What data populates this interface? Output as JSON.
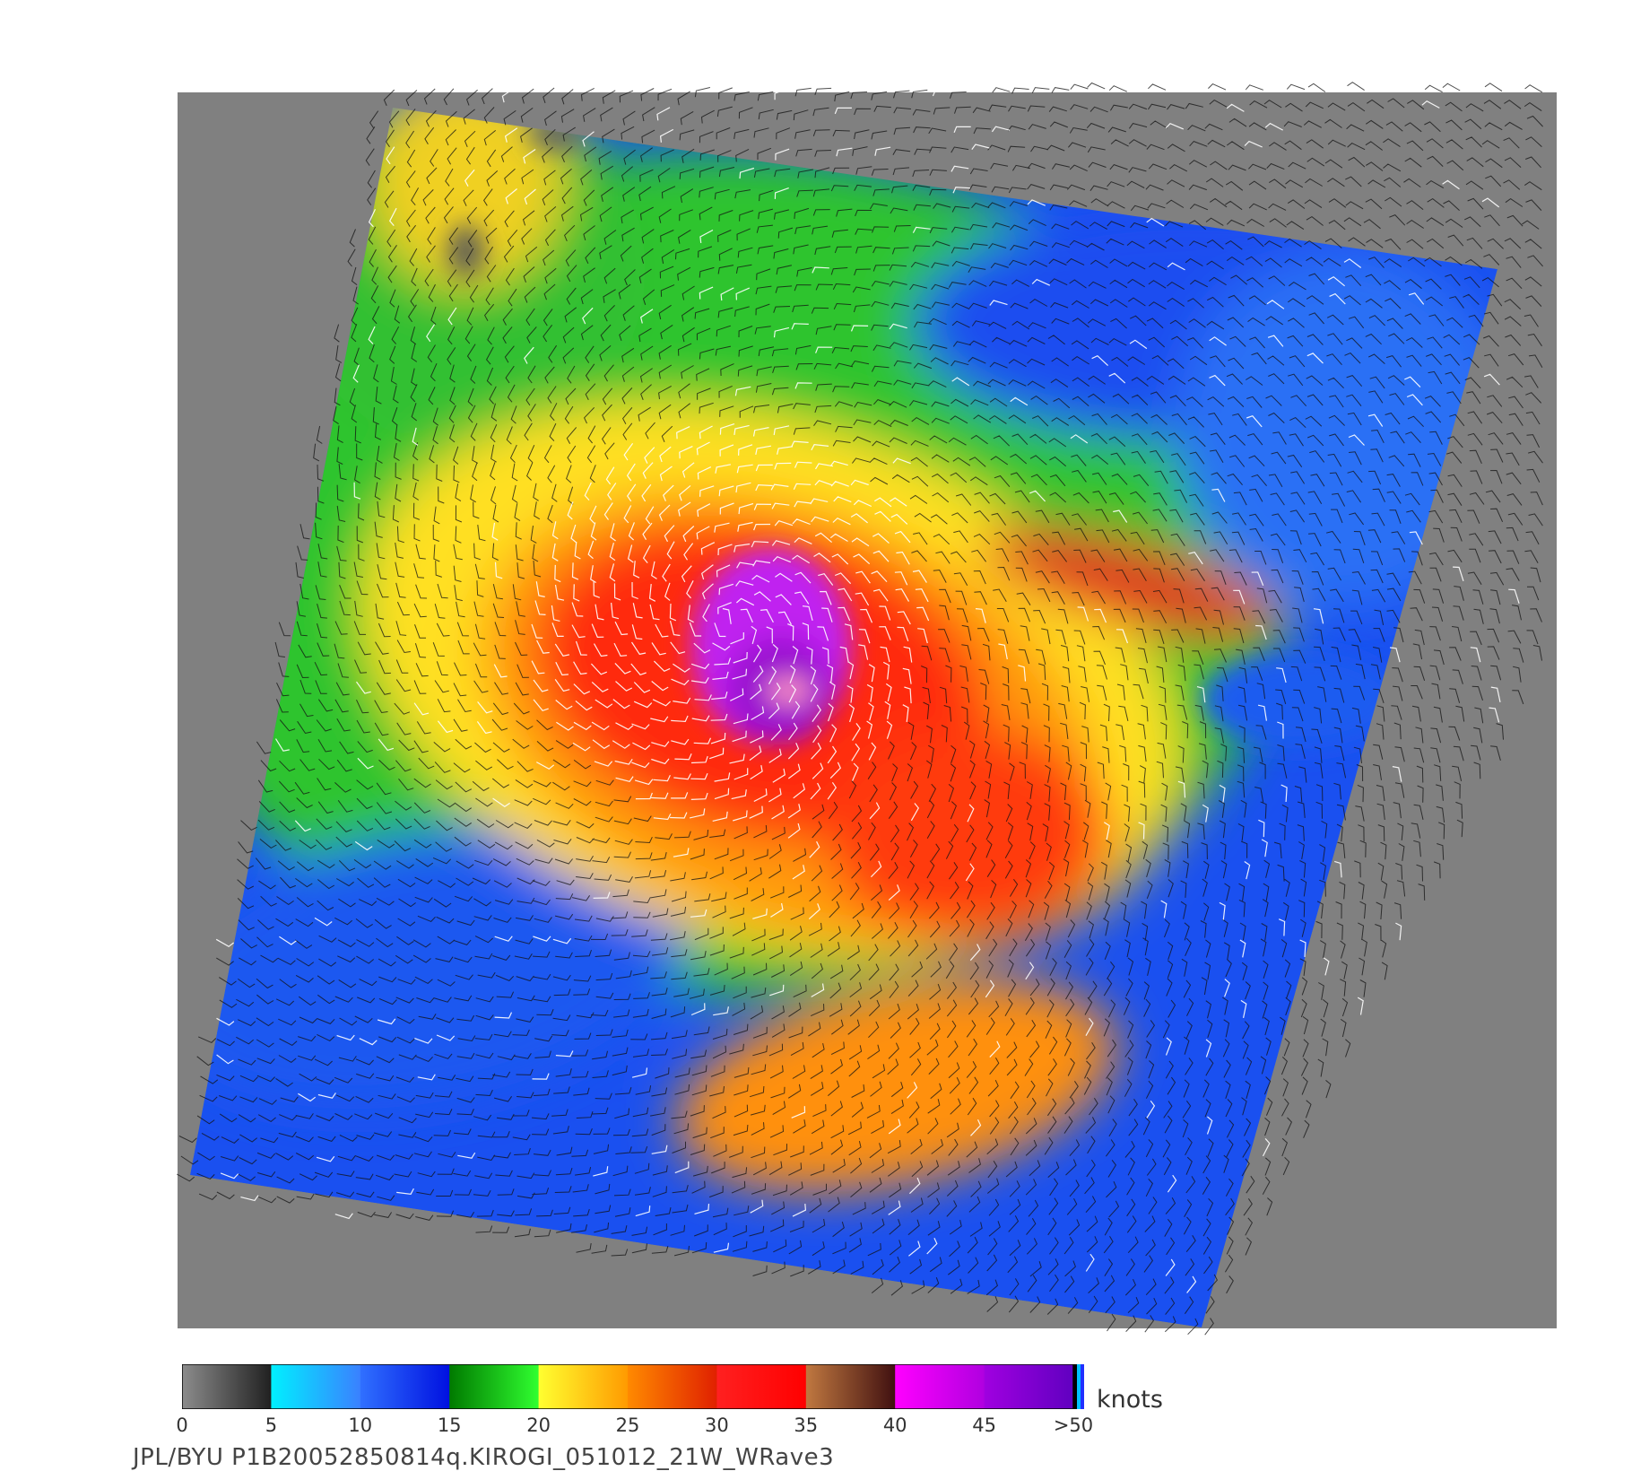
{
  "map": {
    "product": "QuikSCAT scatterometer ocean wind field",
    "storm_center": {
      "col": 0.4,
      "row": 0.43
    }
  },
  "colorbar": {
    "units": "knots",
    "ticks": [
      "0",
      "5",
      "10",
      "15",
      "20",
      "25",
      "30",
      "35",
      "40",
      "45",
      ">50"
    ],
    "segments": [
      {
        "from": 0,
        "to": 5,
        "start": "#8c8c8c",
        "end": "#202020"
      },
      {
        "from": 5,
        "to": 10,
        "start": "#00f0ff",
        "end": "#3a80ff"
      },
      {
        "from": 10,
        "to": 15,
        "start": "#3070ff",
        "end": "#0010e0"
      },
      {
        "from": 15,
        "to": 20,
        "start": "#007a00",
        "end": "#30ff30"
      },
      {
        "from": 20,
        "to": 25,
        "start": "#ffff30",
        "end": "#ff9a00"
      },
      {
        "from": 25,
        "to": 30,
        "start": "#ff8a00",
        "end": "#e02000"
      },
      {
        "from": 30,
        "to": 35,
        "start": "#ff2020",
        "end": "#ff0000"
      },
      {
        "from": 35,
        "to": 40,
        "start": "#c07840",
        "end": "#401010"
      },
      {
        "from": 40,
        "to": 45,
        "start": "#ff00ff",
        "end": "#b000e0"
      },
      {
        "from": 45,
        "to": 50,
        "start": "#a000e0",
        "end": "#6000c0"
      }
    ]
  },
  "source": "JPL/BYU  P1B20052850814q.KIROGI_051012_21W_WRave3"
}
